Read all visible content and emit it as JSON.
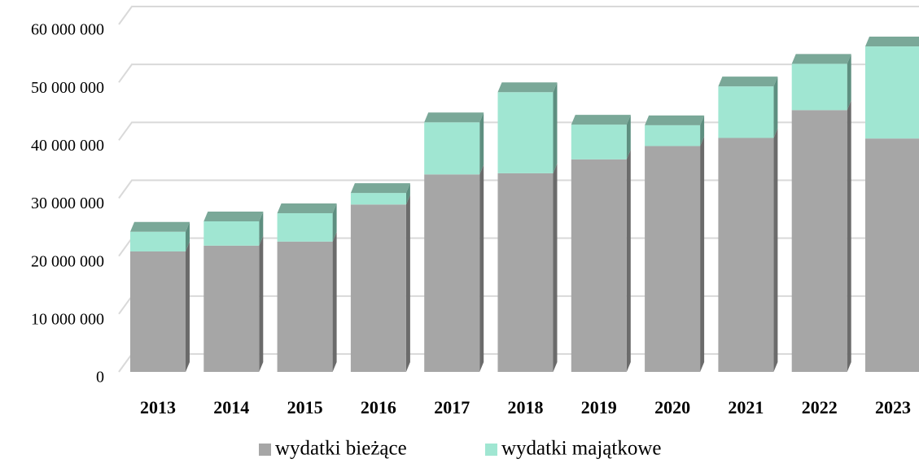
{
  "chart_data": {
    "type": "bar",
    "stacked": true,
    "categories": [
      "2013",
      "2014",
      "2015",
      "2016",
      "2017",
      "2018",
      "2019",
      "2020",
      "2021",
      "2022",
      "2023"
    ],
    "series": [
      {
        "name": "wydatki bieżące",
        "color": "#a6a6a6",
        "values": [
          20800000,
          21800000,
          22500000,
          28900000,
          34100000,
          34300000,
          36700000,
          39000000,
          40400000,
          45200000,
          40300000
        ]
      },
      {
        "name": "wydatki majątkowe",
        "color": "#a0e6d2",
        "values": [
          3400000,
          4200000,
          4900000,
          2000000,
          9000000,
          14000000,
          6000000,
          3600000,
          8900000,
          8000000,
          15900000
        ]
      }
    ],
    "ylim": [
      0,
      60000000
    ],
    "yticks": [
      0,
      {
        "value": 10000000,
        "label": "10 000 000"
      },
      {
        "value": 20000000,
        "label": "20 000 000"
      },
      {
        "value": 30000000,
        "label": "30 000 000"
      },
      {
        "value": 40000000,
        "label": "40 000 000"
      },
      {
        "value": 50000000,
        "label": "50 000 000"
      },
      {
        "value": 60000000,
        "label": "60 000 000"
      }
    ],
    "grid": true,
    "legend": "bottom"
  }
}
